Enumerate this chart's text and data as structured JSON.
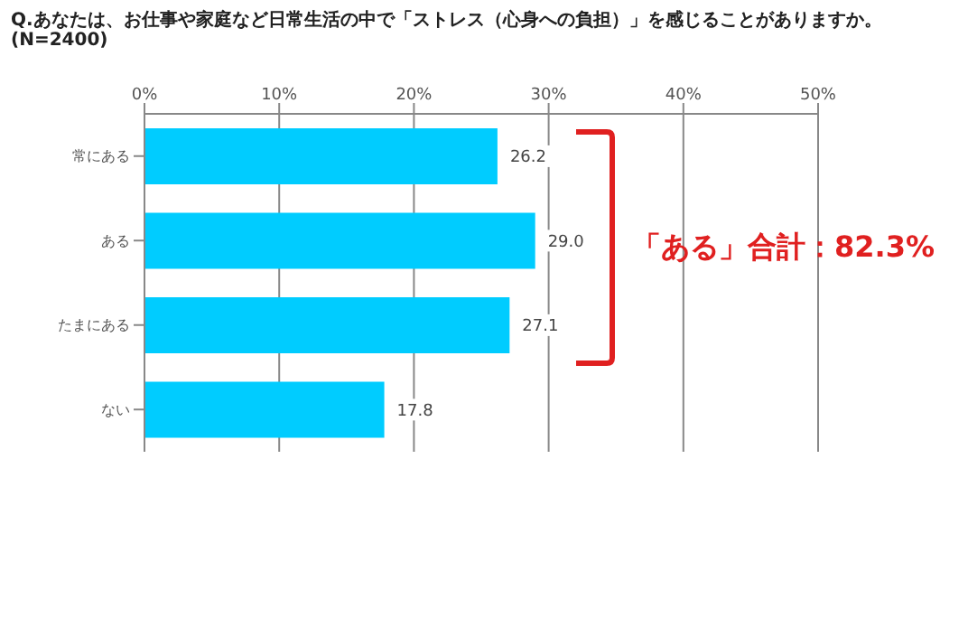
{
  "chart_data": {
    "type": "bar",
    "orientation": "horizontal",
    "title": "Q.あなたは、お仕事や家庭など日常生活の中で「ストレス（心身への負担）」を感じることがありますか。",
    "subtitle": "(N=2400)",
    "categories": [
      "常にある",
      "ある",
      "たまにある",
      "ない"
    ],
    "values": [
      26.2,
      29.0,
      27.1,
      17.8
    ],
    "value_labels": [
      "26.2",
      "29.0",
      "27.1",
      "17.8"
    ],
    "color": "#00ccff",
    "xlim": [
      0,
      50
    ],
    "xticks": [
      {
        "value": 0,
        "label": "0%"
      },
      {
        "value": 10,
        "label": "10%"
      },
      {
        "value": 20,
        "label": "20%"
      },
      {
        "value": 30,
        "label": "30%"
      },
      {
        "value": 40,
        "label": "40%"
      },
      {
        "value": 50,
        "label": "50%"
      }
    ],
    "grid": "x",
    "annotations": [
      "「ある」合計：82.3%"
    ]
  }
}
